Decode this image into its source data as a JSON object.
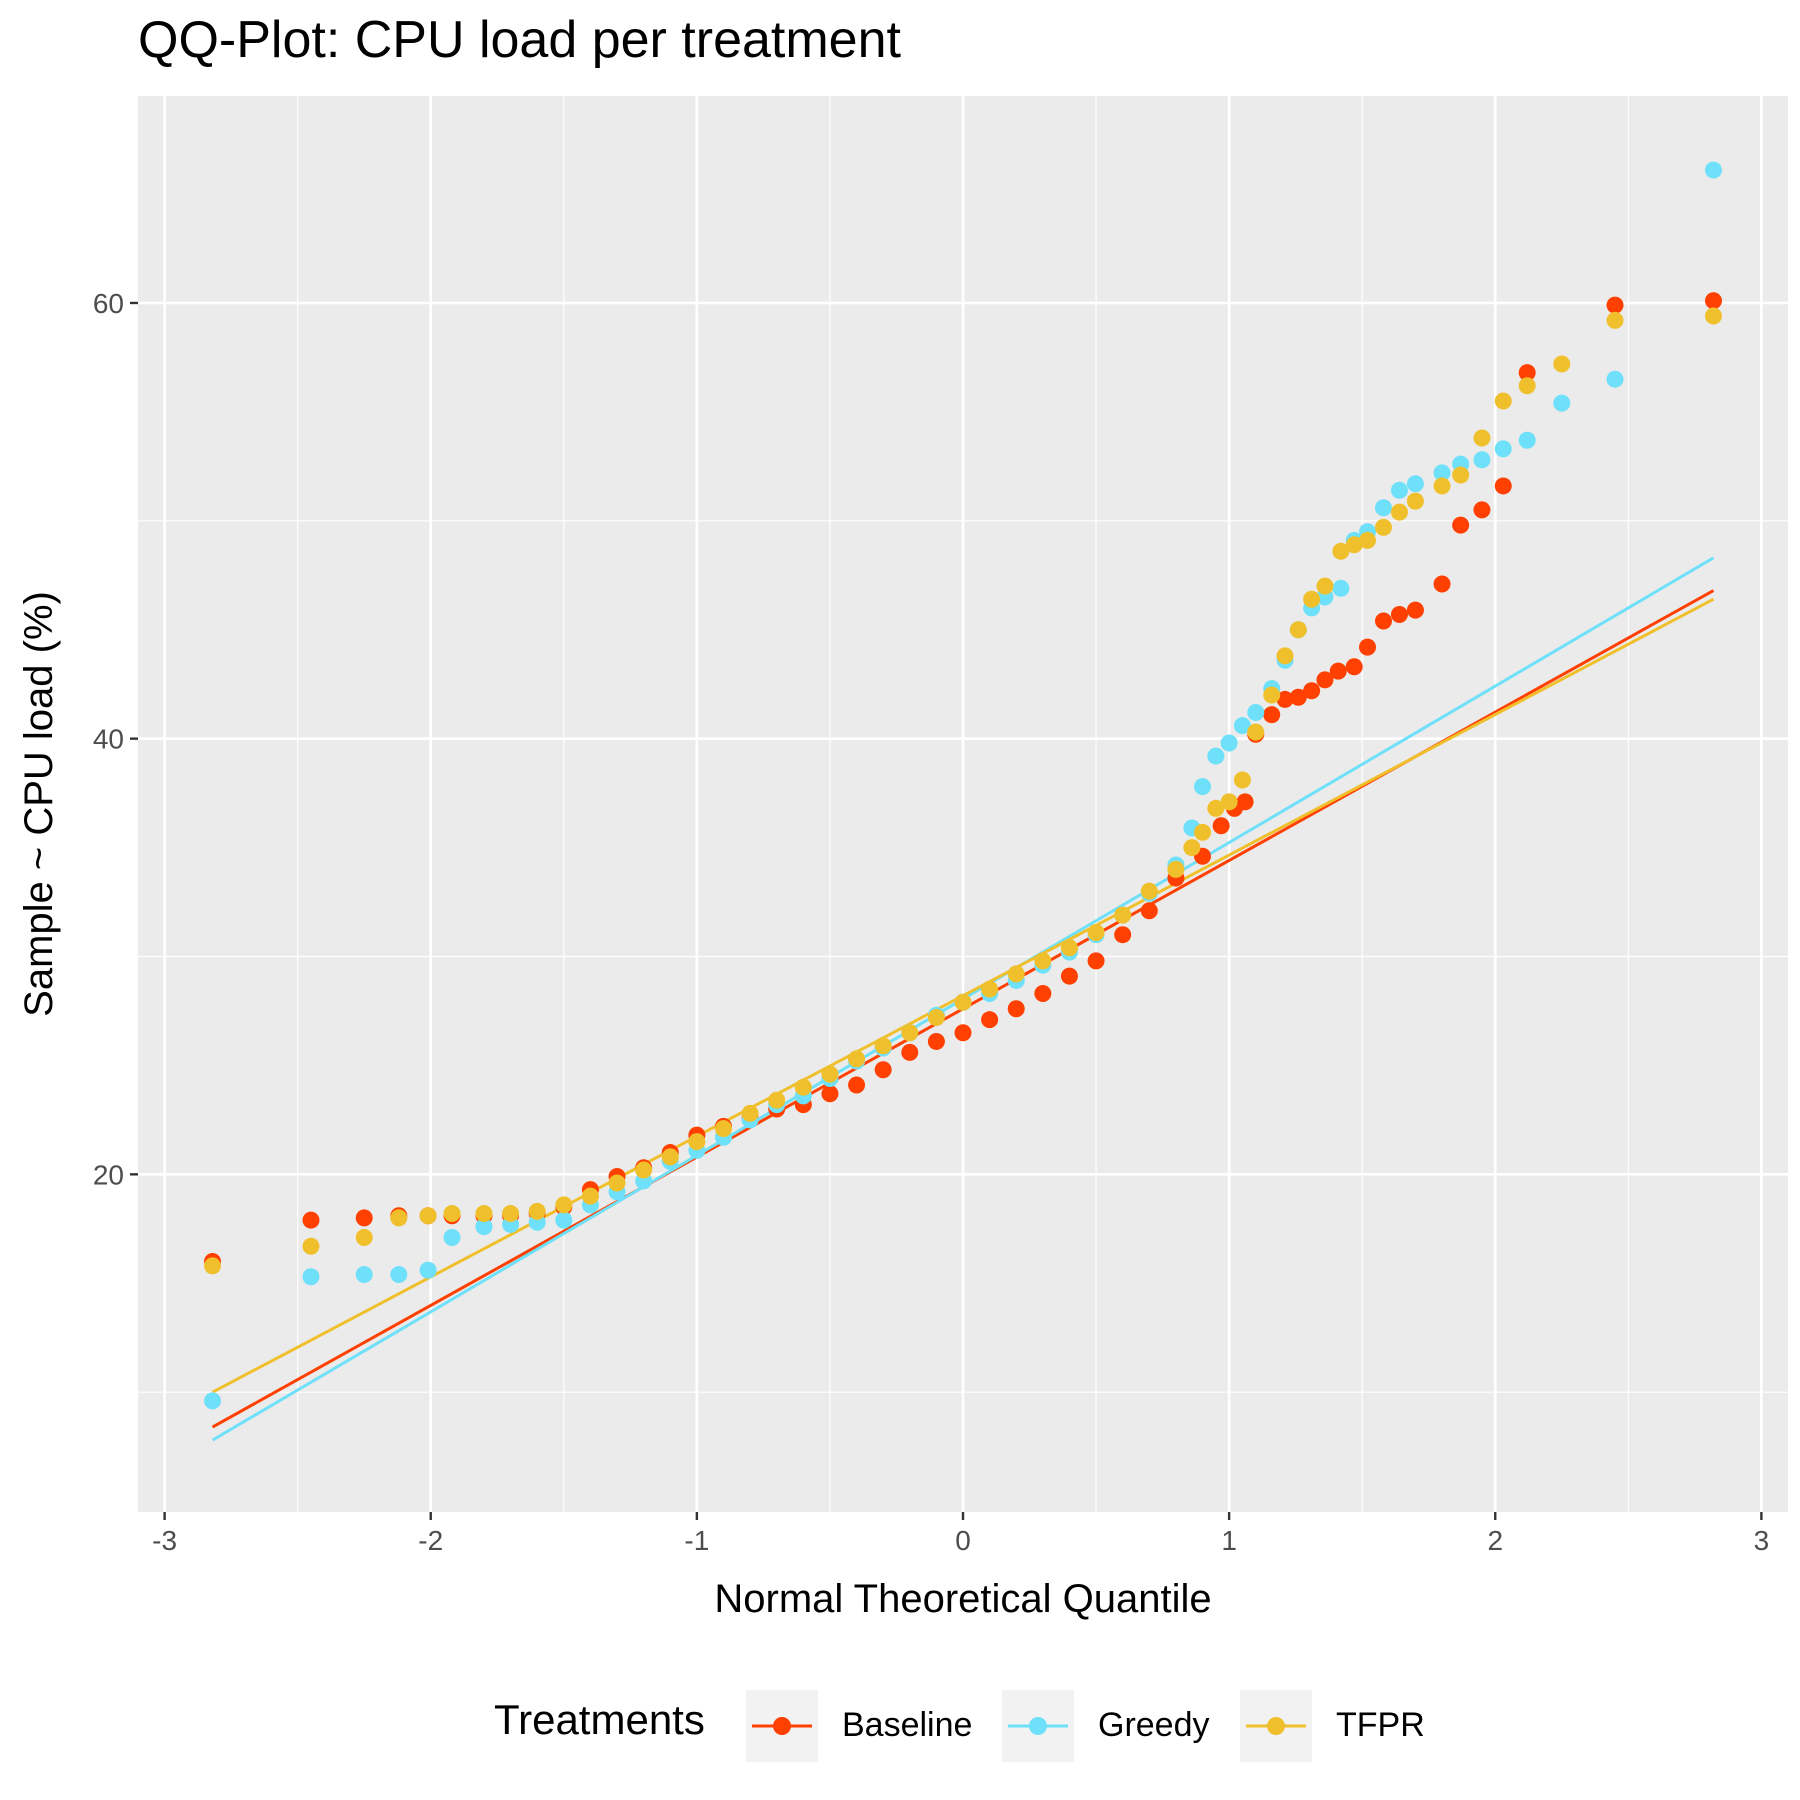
{
  "chart_data": {
    "type": "scatter",
    "title": "QQ-Plot: CPU load per treatment",
    "xlabel": "Normal Theoretical Quantile",
    "ylabel": "Sample ~ CPU load (%)",
    "xlim": [
      -3.1,
      3.1
    ],
    "ylim": [
      4.5,
      69.5
    ],
    "x_ticks": [
      -3,
      -2,
      -1,
      0,
      1,
      2,
      3
    ],
    "x_tick_labels": [
      "-3",
      "-2",
      "-1",
      "0",
      "1",
      "2",
      "3"
    ],
    "y_ticks": [
      20,
      40,
      60
    ],
    "y_tick_labels": [
      "20",
      "40",
      "60"
    ],
    "grid": true,
    "legend": {
      "title": "Treatments",
      "position": "bottom"
    },
    "series": [
      {
        "name": "Baseline",
        "color": "#ff4000",
        "line": {
          "x": [
            -2.82,
            2.82
          ],
          "y": [
            8.4,
            46.8
          ]
        },
        "points": [
          [
            -2.82,
            16.0
          ],
          [
            -2.45,
            17.9
          ],
          [
            -2.25,
            18.0
          ],
          [
            -2.12,
            18.1
          ],
          [
            -2.01,
            18.1
          ],
          [
            -1.92,
            18.1
          ],
          [
            -1.8,
            18.1
          ],
          [
            -1.7,
            18.1
          ],
          [
            -1.6,
            18.2
          ],
          [
            -1.5,
            18.5
          ],
          [
            -1.4,
            19.3
          ],
          [
            -1.3,
            19.9
          ],
          [
            -1.2,
            20.3
          ],
          [
            -1.1,
            21.0
          ],
          [
            -1.0,
            21.8
          ],
          [
            -0.9,
            22.2
          ],
          [
            -0.8,
            22.6
          ],
          [
            -0.7,
            23.0
          ],
          [
            -0.6,
            23.2
          ],
          [
            -0.5,
            23.7
          ],
          [
            -0.4,
            24.1
          ],
          [
            -0.3,
            24.8
          ],
          [
            -0.2,
            25.6
          ],
          [
            -0.1,
            26.1
          ],
          [
            0.0,
            26.5
          ],
          [
            0.1,
            27.1
          ],
          [
            0.2,
            27.6
          ],
          [
            0.3,
            28.3
          ],
          [
            0.4,
            29.1
          ],
          [
            0.5,
            29.8
          ],
          [
            0.6,
            31.0
          ],
          [
            0.7,
            32.1
          ],
          [
            0.8,
            33.6
          ],
          [
            0.9,
            34.6
          ],
          [
            0.97,
            36.0
          ],
          [
            1.02,
            36.8
          ],
          [
            1.06,
            37.1
          ],
          [
            1.1,
            40.2
          ],
          [
            1.16,
            41.1
          ],
          [
            1.21,
            41.8
          ],
          [
            1.26,
            41.9
          ],
          [
            1.31,
            42.2
          ],
          [
            1.36,
            42.7
          ],
          [
            1.41,
            43.1
          ],
          [
            1.47,
            43.3
          ],
          [
            1.52,
            44.2
          ],
          [
            1.58,
            45.4
          ],
          [
            1.64,
            45.7
          ],
          [
            1.7,
            45.9
          ],
          [
            1.8,
            47.1
          ],
          [
            1.87,
            49.8
          ],
          [
            1.95,
            50.5
          ],
          [
            2.03,
            51.6
          ],
          [
            2.12,
            56.8
          ],
          [
            2.45,
            59.9
          ],
          [
            2.82,
            60.1
          ]
        ]
      },
      {
        "name": "Greedy",
        "color": "#6fe0fa",
        "line": {
          "x": [
            -2.82,
            2.82
          ],
          "y": [
            7.8,
            48.3
          ]
        },
        "points": [
          [
            -2.82,
            9.6
          ],
          [
            -2.45,
            15.3
          ],
          [
            -2.25,
            15.4
          ],
          [
            -2.12,
            15.4
          ],
          [
            -2.01,
            15.6
          ],
          [
            -1.92,
            17.1
          ],
          [
            -1.8,
            17.6
          ],
          [
            -1.7,
            17.7
          ],
          [
            -1.6,
            17.8
          ],
          [
            -1.5,
            17.9
          ],
          [
            -1.4,
            18.6
          ],
          [
            -1.3,
            19.2
          ],
          [
            -1.2,
            19.7
          ],
          [
            -1.1,
            20.6
          ],
          [
            -1.0,
            21.1
          ],
          [
            -0.9,
            21.7
          ],
          [
            -0.8,
            22.5
          ],
          [
            -0.7,
            23.2
          ],
          [
            -0.6,
            23.6
          ],
          [
            -0.5,
            24.4
          ],
          [
            -0.4,
            25.2
          ],
          [
            -0.3,
            25.8
          ],
          [
            -0.2,
            26.5
          ],
          [
            -0.1,
            27.3
          ],
          [
            0.0,
            27.9
          ],
          [
            0.1,
            28.3
          ],
          [
            0.2,
            28.9
          ],
          [
            0.3,
            29.6
          ],
          [
            0.4,
            30.2
          ],
          [
            0.5,
            31.0
          ],
          [
            0.6,
            31.9
          ],
          [
            0.7,
            32.9
          ],
          [
            0.8,
            34.2
          ],
          [
            0.86,
            35.9
          ],
          [
            0.9,
            37.8
          ],
          [
            0.95,
            39.2
          ],
          [
            1.0,
            39.8
          ],
          [
            1.05,
            40.6
          ],
          [
            1.1,
            41.2
          ],
          [
            1.16,
            42.3
          ],
          [
            1.21,
            43.6
          ],
          [
            1.26,
            45.0
          ],
          [
            1.31,
            46.0
          ],
          [
            1.36,
            46.5
          ],
          [
            1.42,
            46.9
          ],
          [
            1.47,
            49.1
          ],
          [
            1.52,
            49.5
          ],
          [
            1.58,
            50.6
          ],
          [
            1.64,
            51.4
          ],
          [
            1.7,
            51.7
          ],
          [
            1.8,
            52.2
          ],
          [
            1.87,
            52.6
          ],
          [
            1.95,
            52.8
          ],
          [
            2.03,
            53.3
          ],
          [
            2.12,
            53.7
          ],
          [
            2.25,
            55.4
          ],
          [
            2.45,
            56.5
          ],
          [
            2.82,
            66.1
          ]
        ]
      },
      {
        "name": "TFPR",
        "color": "#f0c02c",
        "line": {
          "x": [
            -2.82,
            2.82
          ],
          "y": [
            10.0,
            46.4
          ]
        },
        "points": [
          [
            -2.82,
            15.8
          ],
          [
            -2.45,
            16.7
          ],
          [
            -2.25,
            17.1
          ],
          [
            -2.12,
            18.0
          ],
          [
            -2.01,
            18.1
          ],
          [
            -1.92,
            18.2
          ],
          [
            -1.8,
            18.2
          ],
          [
            -1.7,
            18.2
          ],
          [
            -1.6,
            18.3
          ],
          [
            -1.5,
            18.6
          ],
          [
            -1.4,
            19.0
          ],
          [
            -1.3,
            19.6
          ],
          [
            -1.2,
            20.2
          ],
          [
            -1.1,
            20.8
          ],
          [
            -1.0,
            21.5
          ],
          [
            -0.9,
            22.1
          ],
          [
            -0.8,
            22.8
          ],
          [
            -0.7,
            23.4
          ],
          [
            -0.6,
            24.0
          ],
          [
            -0.5,
            24.6
          ],
          [
            -0.4,
            25.3
          ],
          [
            -0.3,
            25.9
          ],
          [
            -0.2,
            26.5
          ],
          [
            -0.1,
            27.2
          ],
          [
            0.0,
            27.9
          ],
          [
            0.1,
            28.5
          ],
          [
            0.2,
            29.2
          ],
          [
            0.3,
            29.8
          ],
          [
            0.4,
            30.4
          ],
          [
            0.5,
            31.1
          ],
          [
            0.6,
            31.9
          ],
          [
            0.7,
            33.0
          ],
          [
            0.8,
            34.0
          ],
          [
            0.86,
            35.0
          ],
          [
            0.9,
            35.7
          ],
          [
            0.95,
            36.8
          ],
          [
            1.0,
            37.1
          ],
          [
            1.05,
            38.1
          ],
          [
            1.1,
            40.3
          ],
          [
            1.16,
            42.0
          ],
          [
            1.21,
            43.8
          ],
          [
            1.26,
            45.0
          ],
          [
            1.31,
            46.4
          ],
          [
            1.36,
            47.0
          ],
          [
            1.42,
            48.6
          ],
          [
            1.47,
            48.9
          ],
          [
            1.52,
            49.1
          ],
          [
            1.58,
            49.7
          ],
          [
            1.64,
            50.4
          ],
          [
            1.7,
            50.9
          ],
          [
            1.8,
            51.6
          ],
          [
            1.87,
            52.1
          ],
          [
            1.95,
            53.8
          ],
          [
            2.03,
            55.5
          ],
          [
            2.12,
            56.2
          ],
          [
            2.25,
            57.2
          ],
          [
            2.45,
            59.2
          ],
          [
            2.82,
            59.4
          ]
        ]
      }
    ]
  }
}
